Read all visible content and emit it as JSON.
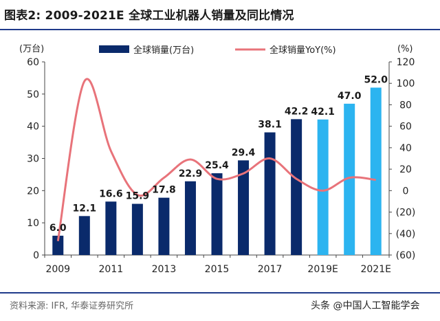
{
  "title": "图表2:   2009-2021E 全球工业机器人销量及同比情况",
  "source": "资料来源: IFR, 华泰证券研究所",
  "watermark": "头条 @中国人工智能学会",
  "chart_data": {
    "type": "bar",
    "categories": [
      "2009",
      "2010",
      "2011",
      "2012",
      "2013",
      "2014",
      "2015",
      "2016",
      "2017",
      "2018",
      "2019E",
      "2020E",
      "2021E"
    ],
    "x_tick_labels": [
      "2009",
      "2011",
      "2013",
      "2015",
      "2017",
      "2019E",
      "2021E"
    ],
    "series": [
      {
        "name": "全球销量(万台)",
        "axis": "left",
        "kind": "bar",
        "values": [
          6.0,
          12.1,
          16.6,
          15.9,
          17.8,
          22.9,
          25.4,
          29.4,
          38.1,
          42.2,
          42.1,
          47.0,
          52.0
        ],
        "data_labels": [
          "6.0",
          "12.1",
          "16.6",
          "15.9",
          "17.8",
          "22.9",
          "25.4",
          "29.4",
          "38.1",
          "42.2",
          "42.1",
          "47.0",
          "52.0"
        ],
        "colors": [
          "#0a2a6b",
          "#0a2a6b",
          "#0a2a6b",
          "#0a2a6b",
          "#0a2a6b",
          "#0a2a6b",
          "#0a2a6b",
          "#0a2a6b",
          "#0a2a6b",
          "#0a2a6b",
          "#2cb4f0",
          "#2cb4f0",
          "#2cb4f0"
        ]
      },
      {
        "name": "全球销量YoY(%)",
        "axis": "right",
        "kind": "line",
        "color": "#e8737a",
        "values": [
          -47,
          102,
          37,
          -4,
          12,
          29,
          11,
          16,
          30,
          11,
          0,
          12,
          10
        ]
      }
    ],
    "y_left": {
      "label": "(万台)",
      "min": 0,
      "max": 60,
      "ticks": [
        "0",
        "10",
        "20",
        "30",
        "40",
        "50",
        "60"
      ]
    },
    "y_right": {
      "label": "(%)",
      "min": -60,
      "max": 120,
      "ticks": [
        "(60)",
        "(40)",
        "(20)",
        "0",
        "20",
        "40",
        "60",
        "80",
        "100",
        "120"
      ]
    },
    "legend": {
      "position": "top"
    }
  }
}
